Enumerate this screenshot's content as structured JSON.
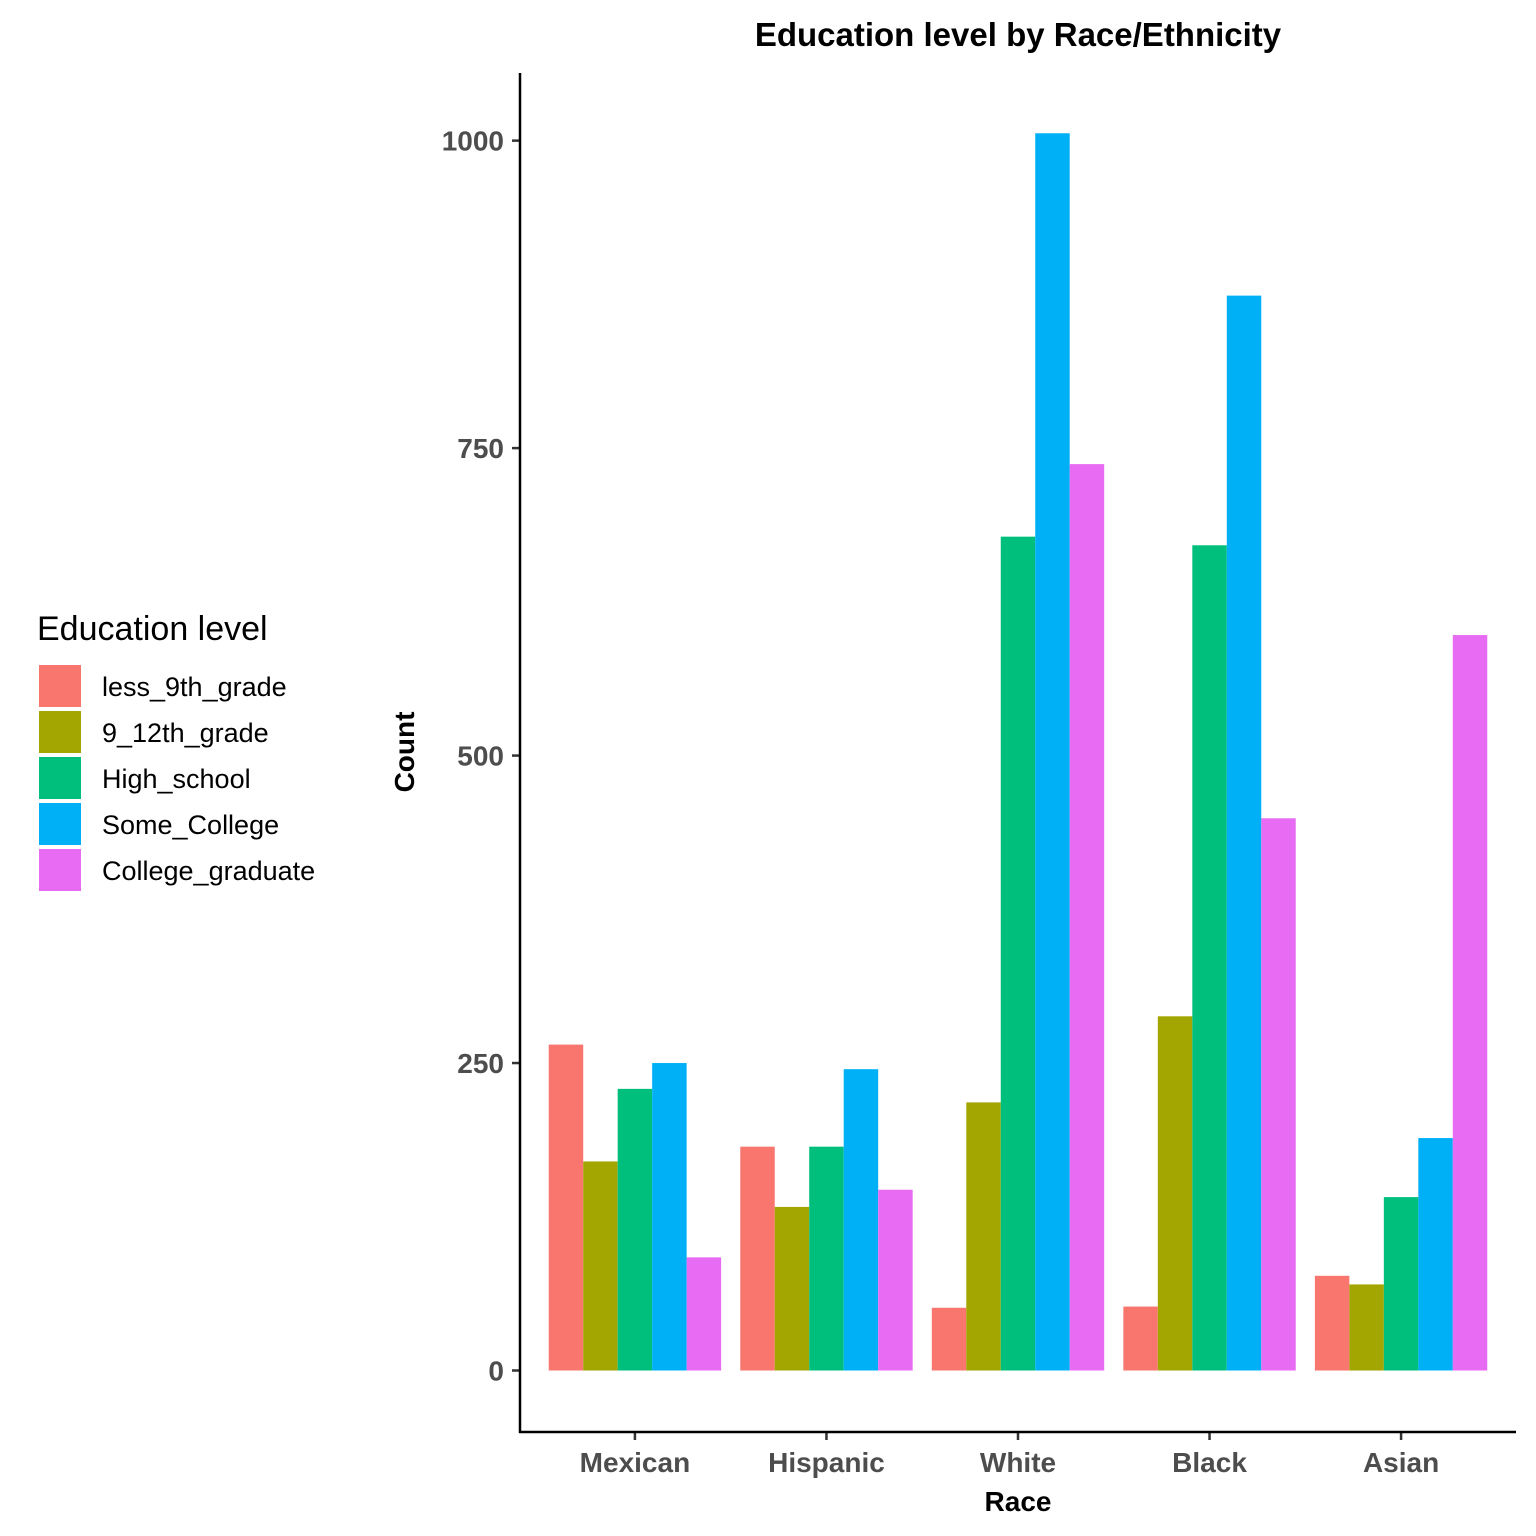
{
  "chart_data": {
    "type": "bar",
    "title": "Education level by Race/Ethnicity",
    "xlabel": "Race",
    "ylabel": "Count",
    "categories": [
      "Mexican",
      "Hispanic",
      "White",
      "Black",
      "Asian"
    ],
    "ylim": [
      -50,
      1055
    ],
    "yticks": [
      0,
      250,
      500,
      750,
      1000
    ],
    "grid": false,
    "legend": {
      "title": "Education level",
      "placement": "left"
    },
    "series": [
      {
        "name": "less_9th_grade",
        "color": "#F8766D",
        "values": [
          265,
          182,
          51,
          52,
          77
        ]
      },
      {
        "name": "9_12th_grade",
        "color": "#A3A500",
        "values": [
          170,
          133,
          218,
          288,
          70
        ]
      },
      {
        "name": "High_school",
        "color": "#00BF7D",
        "values": [
          229,
          182,
          678,
          671,
          141
        ]
      },
      {
        "name": "Some_College",
        "color": "#00B0F6",
        "values": [
          250,
          245,
          1006,
          874,
          189
        ]
      },
      {
        "name": "College_graduate",
        "color": "#E76BF3",
        "values": [
          92,
          147,
          737,
          449,
          598
        ]
      }
    ]
  }
}
